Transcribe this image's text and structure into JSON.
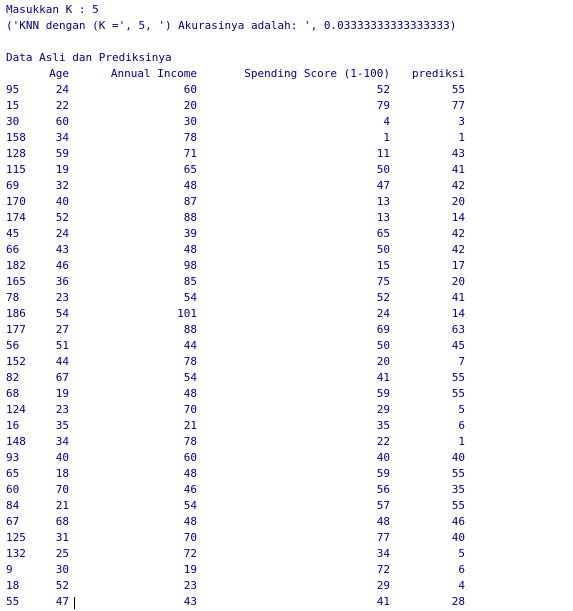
{
  "console": {
    "prompt_line": "Masukkan K : 5",
    "result_line": "('KNN dengan (K =', 5, ') Akurasinya adalah: ', 0.03333333333333333)",
    "section_title": "Data Asli dan Prediksinya"
  },
  "table": {
    "columns": [
      "",
      "Age",
      "Annual Income",
      "Spending Score (1-100)",
      "prediksi"
    ],
    "rows": [
      [
        "95",
        "24",
        "60",
        "52",
        "55"
      ],
      [
        "15",
        "22",
        "20",
        "79",
        "77"
      ],
      [
        "30",
        "60",
        "30",
        "4",
        "3"
      ],
      [
        "158",
        "34",
        "78",
        "1",
        "1"
      ],
      [
        "128",
        "59",
        "71",
        "11",
        "43"
      ],
      [
        "115",
        "19",
        "65",
        "50",
        "41"
      ],
      [
        "69",
        "32",
        "48",
        "47",
        "42"
      ],
      [
        "170",
        "40",
        "87",
        "13",
        "20"
      ],
      [
        "174",
        "52",
        "88",
        "13",
        "14"
      ],
      [
        "45",
        "24",
        "39",
        "65",
        "42"
      ],
      [
        "66",
        "43",
        "48",
        "50",
        "42"
      ],
      [
        "182",
        "46",
        "98",
        "15",
        "17"
      ],
      [
        "165",
        "36",
        "85",
        "75",
        "20"
      ],
      [
        "78",
        "23",
        "54",
        "52",
        "41"
      ],
      [
        "186",
        "54",
        "101",
        "24",
        "14"
      ],
      [
        "177",
        "27",
        "88",
        "69",
        "63"
      ],
      [
        "56",
        "51",
        "44",
        "50",
        "45"
      ],
      [
        "152",
        "44",
        "78",
        "20",
        "7"
      ],
      [
        "82",
        "67",
        "54",
        "41",
        "55"
      ],
      [
        "68",
        "19",
        "48",
        "59",
        "55"
      ],
      [
        "124",
        "23",
        "70",
        "29",
        "5"
      ],
      [
        "16",
        "35",
        "21",
        "35",
        "6"
      ],
      [
        "148",
        "34",
        "78",
        "22",
        "1"
      ],
      [
        "93",
        "40",
        "60",
        "40",
        "40"
      ],
      [
        "65",
        "18",
        "48",
        "59",
        "55"
      ],
      [
        "60",
        "70",
        "46",
        "56",
        "35"
      ],
      [
        "84",
        "21",
        "54",
        "57",
        "55"
      ],
      [
        "67",
        "68",
        "48",
        "48",
        "46"
      ],
      [
        "125",
        "31",
        "70",
        "77",
        "40"
      ],
      [
        "132",
        "25",
        "72",
        "34",
        "5"
      ],
      [
        "9",
        "30",
        "19",
        "72",
        "6"
      ],
      [
        "18",
        "52",
        "23",
        "29",
        "4"
      ],
      [
        "55",
        "47",
        "43",
        "41",
        "28"
      ]
    ]
  }
}
